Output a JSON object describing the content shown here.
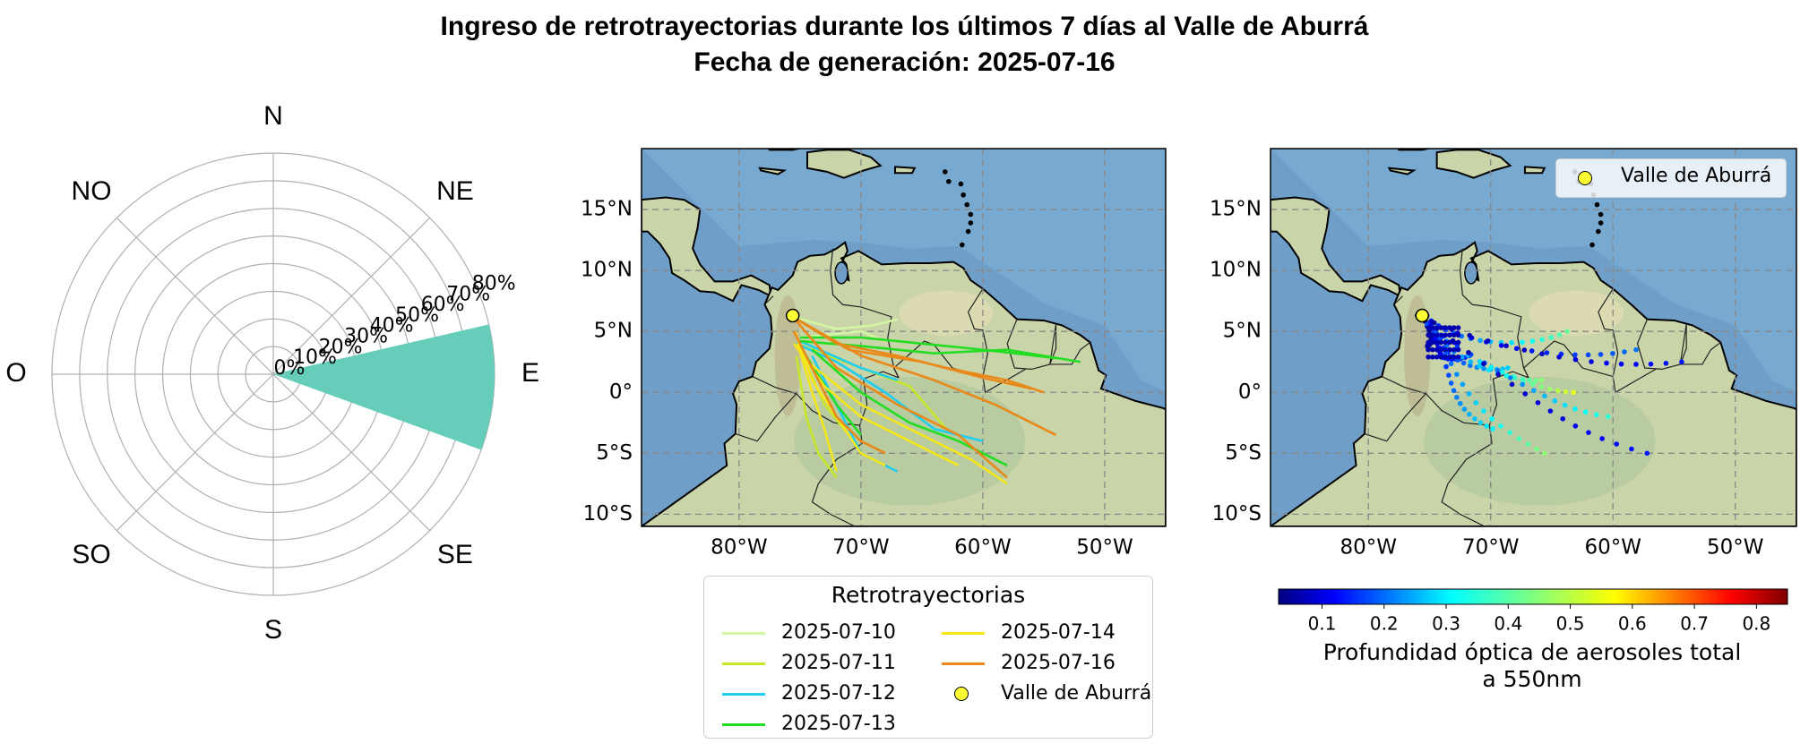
{
  "title_line1": "Ingreso de retrotrayectorias durante los últimos 7 días al Valle de Aburrá",
  "title_line2": "Fecha de generación: 2025-07-16",
  "rose": {
    "directions": [
      "N",
      "NE",
      "E",
      "SE",
      "S",
      "SO",
      "O",
      "NO"
    ],
    "radial_ticks": [
      "0%",
      "10%",
      "20%",
      "30%",
      "40%",
      "50%",
      "60%",
      "70%",
      "80%"
    ],
    "color": "#66cdbb"
  },
  "map": {
    "lat_ticks": [
      "15°N",
      "10°N",
      "5°N",
      "0°",
      "5°S",
      "10°S"
    ],
    "lon_ticks": [
      "80°W",
      "70°W",
      "60°W",
      "50°W"
    ],
    "site_label": "Valle de Aburrá"
  },
  "legend": {
    "title": "Retrotrayectorias",
    "items": [
      {
        "label": "2025-07-10",
        "color": "#d2f7a3"
      },
      {
        "label": "2025-07-11",
        "color": "#c8e62a"
      },
      {
        "label": "2025-07-12",
        "color": "#1ecdf0"
      },
      {
        "label": "2025-07-13",
        "color": "#22dd22"
      },
      {
        "label": "2025-07-14",
        "color": "#f5e61a"
      },
      {
        "label": "2025-07-16",
        "color": "#e8891a"
      }
    ],
    "site_label": "Valle de Aburrá"
  },
  "colorbar": {
    "ticks": [
      "0.1",
      "0.2",
      "0.3",
      "0.4",
      "0.5",
      "0.6",
      "0.7",
      "0.8"
    ],
    "label_line1": "Profundidad óptica de aerosoles total",
    "label_line2": "a 550nm",
    "cmap": "jet"
  },
  "chart_data": [
    {
      "type": "polar-bar",
      "title": "",
      "categories": [
        "E"
      ],
      "sector_degrees": [
        -20,
        13
      ],
      "values": [
        80
      ],
      "rlim": [
        0,
        80
      ],
      "unit": "%"
    },
    {
      "type": "line",
      "title": "",
      "xlabel": "",
      "ylabel": "",
      "xlim": [
        -88,
        -45
      ],
      "ylim": [
        -11,
        20
      ],
      "site": {
        "lon": -75.6,
        "lat": 6.3,
        "name": "Valle de Aburrá"
      },
      "series": [
        {
          "name": "2025-07-10",
          "lines": [
            [
              [
                -75.6,
                6.2
              ],
              [
                -72,
                5.2
              ],
              [
                -69,
                5.5
              ],
              [
                -67,
                6
              ]
            ],
            [
              [
                -75,
                4.5
              ],
              [
                -72,
                4.8
              ],
              [
                -70,
                5
              ],
              [
                -68,
                4.2
              ]
            ]
          ]
        },
        {
          "name": "2025-07-11",
          "lines": [
            [
              [
                -75.3,
                3
              ],
              [
                -74.5,
                -2
              ],
              [
                -73.5,
                -5
              ],
              [
                -72,
                -7
              ]
            ],
            [
              [
                -75.3,
                4
              ],
              [
                -70,
                2
              ],
              [
                -66,
                0.5
              ],
              [
                -63,
                -3
              ]
            ],
            [
              [
                -75,
                3.5
              ],
              [
                -73,
                -1
              ],
              [
                -71,
                -3.5
              ]
            ]
          ]
        },
        {
          "name": "2025-07-12",
          "lines": [
            [
              [
                -75.3,
                4
              ],
              [
                -72,
                2.5
              ],
              [
                -68,
                0
              ],
              [
                -64,
                -3
              ],
              [
                -60,
                -4
              ]
            ],
            [
              [
                -75,
                4.2
              ],
              [
                -70,
                2
              ],
              [
                -67,
                1
              ]
            ],
            [
              [
                -74,
                3
              ],
              [
                -72,
                -1
              ],
              [
                -70,
                -5
              ],
              [
                -67,
                -6.5
              ]
            ]
          ]
        },
        {
          "name": "2025-07-13",
          "lines": [
            [
              [
                -75,
                4.5
              ],
              [
                -70,
                4.5
              ],
              [
                -65,
                4
              ],
              [
                -60,
                3.5
              ],
              [
                -54,
                2.8
              ]
            ],
            [
              [
                -75,
                4.2
              ],
              [
                -70,
                3.8
              ],
              [
                -64,
                3.2
              ],
              [
                -58,
                3.5
              ],
              [
                -52,
                2.5
              ]
            ],
            [
              [
                -74,
                3.5
              ],
              [
                -70,
                0
              ],
              [
                -66,
                -2.5
              ],
              [
                -62,
                -4
              ],
              [
                -58,
                -6
              ]
            ],
            [
              [
                -74.5,
                3
              ],
              [
                -72,
                -1
              ],
              [
                -70,
                -3.5
              ]
            ]
          ]
        },
        {
          "name": "2025-07-14",
          "lines": [
            [
              [
                -75.2,
                4
              ],
              [
                -74,
                0
              ],
              [
                -73,
                -3
              ],
              [
                -72,
                -6.5
              ]
            ],
            [
              [
                -75.4,
                5
              ],
              [
                -74,
                1
              ],
              [
                -72,
                -2
              ],
              [
                -70,
                -5
              ],
              [
                -68,
                -6
              ]
            ],
            [
              [
                -75,
                3
              ],
              [
                -70,
                -1
              ],
              [
                -65,
                -3.5
              ],
              [
                -61,
                -5.5
              ],
              [
                -58,
                -7.5
              ]
            ],
            [
              [
                -75.5,
                4
              ],
              [
                -73,
                0.5
              ],
              [
                -70,
                -2
              ],
              [
                -66,
                -4
              ],
              [
                -62,
                -6
              ]
            ]
          ]
        },
        {
          "name": "2025-07-16",
          "lines": [
            [
              [
                -75.6,
                6.2
              ],
              [
                -72,
                4
              ],
              [
                -67,
                3
              ],
              [
                -63,
                2
              ],
              [
                -58,
                1
              ],
              [
                -55,
                0
              ]
            ],
            [
              [
                -75.6,
                6.2
              ],
              [
                -70,
                3
              ],
              [
                -64,
                1
              ],
              [
                -59,
                -1
              ],
              [
                -54,
                -3.5
              ]
            ],
            [
              [
                -75.6,
                6.2
              ],
              [
                -72,
                2
              ],
              [
                -67,
                -1
              ],
              [
                -62,
                -3.5
              ],
              [
                -58,
                -7
              ]
            ],
            [
              [
                -75.5,
                5
              ],
              [
                -72,
                -2
              ],
              [
                -70,
                -4
              ],
              [
                -68,
                -5
              ]
            ],
            [
              [
                -75.6,
                6.2
              ],
              [
                -71,
                3.5
              ],
              [
                -65,
                2.5
              ],
              [
                -60,
                1.2
              ],
              [
                -56,
                0.3
              ]
            ]
          ]
        }
      ]
    },
    {
      "type": "scatter",
      "title": "",
      "xlabel": "",
      "ylabel": "",
      "xlim": [
        -88,
        -45
      ],
      "ylim": [
        -11,
        20
      ],
      "color_range": [
        0.03,
        0.85
      ],
      "site": {
        "lon": -75.6,
        "lat": 6.3,
        "name": "Valle de Aburrá"
      },
      "note_points": [
        {
          "lon": -74.5,
          "lat": 4.5,
          "aod": 0.05
        },
        {
          "lon": -72,
          "lat": 3,
          "aod": 0.12
        },
        {
          "lon": -69,
          "lat": 2,
          "aod": 0.2
        },
        {
          "lon": -66,
          "lat": 1,
          "aod": 0.3
        },
        {
          "lon": -63,
          "lat": 0,
          "aod": 0.35
        },
        {
          "lon": -60,
          "lat": -2,
          "aod": 0.25
        },
        {
          "lon": -57,
          "lat": -5,
          "aod": 0.1
        },
        {
          "lon": -70,
          "lat": -3,
          "aod": 0.22
        },
        {
          "lon": -66,
          "lat": -5,
          "aod": 0.3
        },
        {
          "lon": -64,
          "lat": 5,
          "aod": 0.28
        },
        {
          "lon": -58,
          "lat": 3.5,
          "aod": 0.15
        },
        {
          "lon": -54,
          "lat": 2.5,
          "aod": 0.1
        }
      ]
    }
  ]
}
